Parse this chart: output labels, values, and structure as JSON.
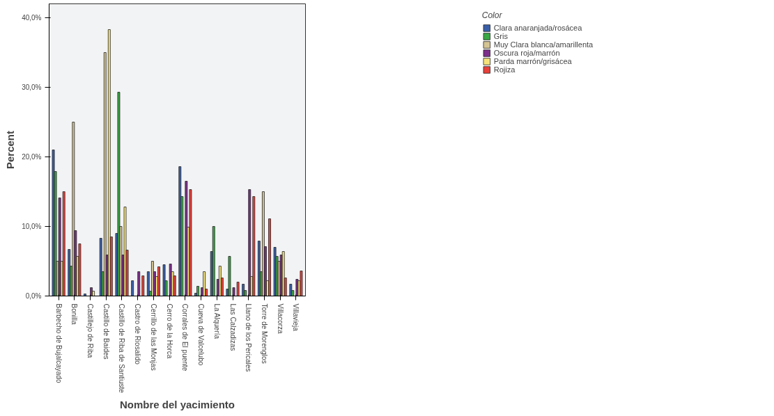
{
  "chart_data": {
    "type": "bar",
    "xlabel": "Nombre del yacimiento",
    "ylabel": "Percent",
    "legend_title": "Color",
    "categories": [
      "Barbecho de Bujalcayado",
      "Bonilla",
      "Castillejo de Riba",
      "Castillo de Baides",
      "Castillo de Riba de Santiuste",
      "Castro de Riosalido",
      "Cerrillo de las Monjas",
      "Cerro de la Horca",
      "Corrales de El puente",
      "Cueva de Valcelubo",
      "La Alquería",
      "Las Calzadizas",
      "Llano de los Pericales",
      "Torre de Morenglos",
      "Villacorza",
      "Villavieja"
    ],
    "series": [
      {
        "name": "Clara anaranjada/rosácea",
        "color": "#3a5fa8",
        "values": [
          21.0,
          6.7,
          0.3,
          8.3,
          9.0,
          2.2,
          3.5,
          4.5,
          18.6,
          0.4,
          6.4,
          1.0,
          1.7,
          7.9,
          7.0,
          1.7
        ]
      },
      {
        "name": "Gris",
        "color": "#3aa844",
        "values": [
          17.9,
          4.3,
          null,
          3.5,
          29.3,
          null,
          0.7,
          2.2,
          14.3,
          1.4,
          10.0,
          5.7,
          0.8,
          3.5,
          5.7,
          0.8
        ]
      },
      {
        "name": "Muy Clara blanca/amarillenta",
        "color": "#d4c494",
        "values": [
          5.0,
          25.0,
          null,
          35.0,
          10.0,
          null,
          5.0,
          null,
          null,
          null,
          null,
          null,
          null,
          15.0,
          5.0,
          null
        ]
      },
      {
        "name": "Oscura roja/marrón",
        "color": "#7c2f8a",
        "values": [
          14.1,
          9.4,
          1.2,
          5.9,
          5.9,
          3.5,
          3.5,
          4.6,
          16.5,
          1.2,
          2.4,
          1.2,
          15.3,
          7.1,
          5.9,
          2.4
        ]
      },
      {
        "name": "Parda marrón/grisácea",
        "color": "#f5e37a",
        "values": [
          5.0,
          5.7,
          0.7,
          38.3,
          12.8,
          null,
          2.8,
          3.5,
          9.9,
          3.5,
          4.3,
          null,
          2.8,
          2.2,
          6.4,
          2.2
        ]
      },
      {
        "name": "Rojiza",
        "color": "#e8413a",
        "values": [
          15.0,
          7.5,
          null,
          8.5,
          6.6,
          2.9,
          4.2,
          2.9,
          15.3,
          1.0,
          2.6,
          2.0,
          14.3,
          11.1,
          2.6,
          3.6
        ]
      }
    ],
    "ylim": [
      0,
      42
    ],
    "yticks": [
      {
        "value": 0,
        "label": "0,0%"
      },
      {
        "value": 10,
        "label": "10,0%"
      },
      {
        "value": 20,
        "label": "20,0%"
      },
      {
        "value": 30,
        "label": "30,0%"
      },
      {
        "value": 40,
        "label": "40,0%"
      }
    ],
    "legend": "right"
  }
}
